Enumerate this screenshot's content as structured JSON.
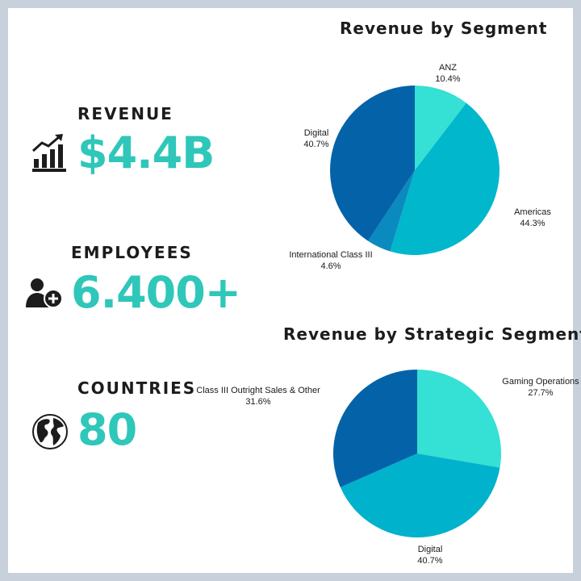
{
  "stats": [
    {
      "label": "REVENUE",
      "value": "$4.4B",
      "icon": "bar-chart-growth-icon"
    },
    {
      "label": "EMPLOYEES",
      "value": "6.400+",
      "icon": "add-user-icon"
    },
    {
      "label": "COUNTRIES",
      "value": "80",
      "icon": "globe-icon"
    }
  ],
  "colors": {
    "accent": "#2fc7b9",
    "slice_teal": "#35e0d4",
    "slice_cyan": "#00b7cc",
    "slice_mid": "#0a8abf",
    "slice_blue": "#0463a8"
  },
  "chart_data": [
    {
      "type": "pie",
      "title": "Revenue by Segment",
      "categories": [
        "ANZ",
        "Americas",
        "International Class III",
        "Digital"
      ],
      "values": [
        10.4,
        44.3,
        4.6,
        40.7
      ],
      "value_labels": [
        "10.4%",
        "44.3%",
        "4.6%",
        "40.7%"
      ],
      "colors": [
        "#35e0d4",
        "#00b7cc",
        "#0a8abf",
        "#0463a8"
      ]
    },
    {
      "type": "pie",
      "title": "Revenue by Strategic Segment",
      "categories": [
        "Gaming Operations",
        "Digital",
        "Class III Outright Sales & Other"
      ],
      "values": [
        27.7,
        40.7,
        31.6
      ],
      "value_labels": [
        "27.7%",
        "40.7%",
        "31.6%"
      ],
      "colors": [
        "#35e0d4",
        "#00b2cc",
        "#0463a8"
      ]
    }
  ]
}
